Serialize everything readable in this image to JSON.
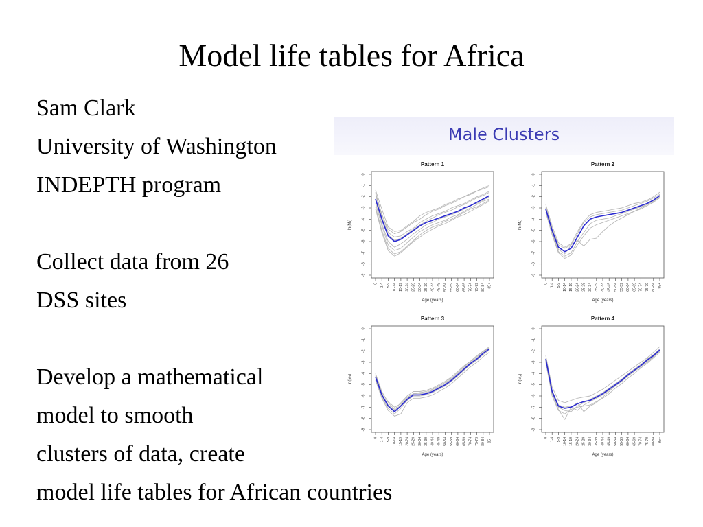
{
  "slide": {
    "title": "Model life tables for Africa",
    "lines": [
      "Sam Clark",
      "University of Washington",
      "INDEPTH program",
      "",
      "Collect data from 26",
      "DSS sites",
      "",
      "Develop a mathematical",
      "model to smooth",
      "clusters of data, create",
      "model life tables for African countries"
    ]
  },
  "figure": {
    "heading": "Male Clusters",
    "colors": {
      "fitted": "#2a2ad0",
      "observed": "#b8b8b8",
      "heading": "#3b3bb3"
    }
  },
  "chart_data": [
    {
      "type": "line",
      "title": "Pattern 1",
      "xlabel": "Age (years)",
      "ylabel": "ln(Mₓ)",
      "ylim": [
        -9,
        0
      ],
      "yticks": [
        0,
        -1,
        -2,
        -3,
        -4,
        -5,
        -6,
        -7,
        -8,
        -9
      ],
      "categories": [
        "0",
        "1-4",
        "5-9",
        "10-14",
        "15-19",
        "20-24",
        "25-29",
        "30-34",
        "35-39",
        "40-44",
        "45-49",
        "50-54",
        "55-59",
        "60-64",
        "65-69",
        "70-74",
        "75-79",
        "80-84",
        "85+"
      ],
      "series": [
        {
          "role": "fitted",
          "values": [
            -2.2,
            -4.0,
            -5.5,
            -6.0,
            -5.8,
            -5.4,
            -5.0,
            -4.6,
            -4.3,
            -4.1,
            -3.9,
            -3.7,
            -3.5,
            -3.3,
            -3.0,
            -2.8,
            -2.5,
            -2.2,
            -1.9
          ]
        },
        {
          "role": "observed",
          "values": [
            -1.6,
            -3.6,
            -4.9,
            -5.3,
            -5.1,
            -4.7,
            -4.3,
            -4.0,
            -3.6,
            -3.3,
            -3.1,
            -2.8,
            -2.6,
            -2.3,
            -2.0,
            -1.8,
            -1.5,
            -1.2,
            -1.0
          ]
        },
        {
          "role": "observed",
          "values": [
            -2.6,
            -4.6,
            -6.3,
            -6.8,
            -6.6,
            -6.1,
            -5.6,
            -5.1,
            -4.8,
            -4.5,
            -4.3,
            -4.1,
            -3.8,
            -3.6,
            -3.3,
            -3.0,
            -2.7,
            -2.4,
            -2.2
          ]
        },
        {
          "role": "observed",
          "values": [
            -1.9,
            -3.5,
            -5.2,
            -5.6,
            -5.5,
            -5.1,
            -4.8,
            -4.3,
            -4.0,
            -3.7,
            -3.5,
            -3.3,
            -3.0,
            -2.8,
            -2.6,
            -2.3,
            -2.0,
            -1.8,
            -1.5
          ]
        },
        {
          "role": "observed",
          "values": [
            -2.9,
            -5.0,
            -6.6,
            -7.1,
            -6.9,
            -6.4,
            -5.9,
            -5.4,
            -5.0,
            -4.7,
            -4.5,
            -4.2,
            -4.0,
            -3.7,
            -3.4,
            -3.1,
            -2.9,
            -2.6,
            -2.3
          ]
        },
        {
          "role": "observed",
          "values": [
            -1.4,
            -3.1,
            -4.7,
            -5.1,
            -5.0,
            -4.6,
            -4.2,
            -3.7,
            -3.4,
            -3.2,
            -3.0,
            -2.7,
            -2.5,
            -2.2,
            -2.0,
            -1.7,
            -1.5,
            -1.3,
            -1.1
          ]
        },
        {
          "role": "observed",
          "values": [
            -2.3,
            -4.4,
            -6.0,
            -6.5,
            -6.2,
            -5.8,
            -5.3,
            -4.9,
            -4.5,
            -4.3,
            -4.0,
            -3.8,
            -3.6,
            -3.4,
            -3.1,
            -2.8,
            -2.6,
            -2.3,
            -2.0
          ]
        },
        {
          "role": "observed",
          "values": [
            -3.1,
            -5.2,
            -6.8,
            -7.3,
            -7.0,
            -6.5,
            -6.0,
            -5.6,
            -5.2,
            -4.9,
            -4.6,
            -4.4,
            -4.1,
            -3.8,
            -3.6,
            -3.3,
            -3.0,
            -2.7,
            -2.4
          ]
        },
        {
          "role": "observed",
          "values": [
            -1.7,
            -3.8,
            -5.4,
            -5.9,
            -5.7,
            -5.3,
            -4.9,
            -4.5,
            -4.2,
            -3.9,
            -3.6,
            -3.4,
            -3.2,
            -2.9,
            -2.7,
            -2.4,
            -2.1,
            -1.9,
            -1.6
          ]
        }
      ]
    },
    {
      "type": "line",
      "title": "Pattern 2",
      "xlabel": "Age (years)",
      "ylabel": "ln(Mₓ)",
      "ylim": [
        -9,
        0
      ],
      "yticks": [
        0,
        -1,
        -2,
        -3,
        -4,
        -5,
        -6,
        -7,
        -8,
        -9
      ],
      "categories": [
        "0",
        "1-4",
        "5-9",
        "10-14",
        "15-19",
        "20-24",
        "25-29",
        "30-34",
        "35-39",
        "40-44",
        "45-49",
        "50-54",
        "55-59",
        "60-64",
        "65-69",
        "70-74",
        "75-79",
        "80-84",
        "85+"
      ],
      "series": [
        {
          "role": "fitted",
          "values": [
            -3.1,
            -5.0,
            -6.5,
            -6.9,
            -6.6,
            -5.6,
            -4.6,
            -4.0,
            -3.8,
            -3.7,
            -3.6,
            -3.5,
            -3.4,
            -3.2,
            -3.0,
            -2.8,
            -2.6,
            -2.3,
            -1.9
          ]
        },
        {
          "role": "observed",
          "values": [
            -2.7,
            -4.6,
            -6.1,
            -6.5,
            -6.2,
            -5.1,
            -4.2,
            -3.6,
            -3.4,
            -3.3,
            -3.2,
            -3.1,
            -3.0,
            -2.8,
            -2.6,
            -2.5,
            -2.3,
            -2.0,
            -1.6
          ]
        },
        {
          "role": "observed",
          "values": [
            -3.4,
            -5.4,
            -7.0,
            -7.5,
            -7.2,
            -6.3,
            -5.5,
            -4.8,
            -4.5,
            -4.3,
            -4.1,
            -3.9,
            -3.7,
            -3.5,
            -3.3,
            -3.1,
            -2.8,
            -2.5,
            -2.1
          ]
        },
        {
          "role": "observed",
          "values": [
            -3.0,
            -5.1,
            -6.7,
            -7.1,
            -6.3,
            -5.9,
            -6.4,
            -5.8,
            -5.7,
            -5.1,
            -4.6,
            -4.2,
            -3.9,
            -3.6,
            -3.3,
            -3.0,
            -2.7,
            -2.4,
            -2.0
          ]
        },
        {
          "role": "observed",
          "values": [
            -3.2,
            -5.2,
            -6.9,
            -7.3,
            -7.0,
            -6.0,
            -5.2,
            -4.4,
            -4.1,
            -4.0,
            -3.9,
            -3.7,
            -3.5,
            -3.3,
            -3.1,
            -2.9,
            -2.7,
            -2.4,
            -2.0
          ]
        },
        {
          "role": "observed",
          "values": [
            -2.9,
            -4.8,
            -6.3,
            -6.6,
            -6.3,
            -5.3,
            -4.3,
            -3.8,
            -3.6,
            -3.5,
            -3.4,
            -3.3,
            -3.2,
            -3.0,
            -2.8,
            -2.6,
            -2.4,
            -2.1,
            -1.8
          ]
        }
      ]
    },
    {
      "type": "line",
      "title": "Pattern 3",
      "xlabel": "Age (years)",
      "ylabel": "ln(Mₓ)",
      "ylim": [
        -9,
        0
      ],
      "yticks": [
        0,
        -1,
        -2,
        -3,
        -4,
        -5,
        -6,
        -7,
        -8,
        -9
      ],
      "categories": [
        "0",
        "1-4",
        "5-9",
        "10-14",
        "15-19",
        "20-24",
        "25-29",
        "30-34",
        "35-39",
        "40-44",
        "45-49",
        "50-54",
        "55-59",
        "60-64",
        "65-69",
        "70-74",
        "75-79",
        "80-84",
        "85+"
      ],
      "series": [
        {
          "role": "fitted",
          "values": [
            -4.3,
            -5.9,
            -6.9,
            -7.4,
            -6.9,
            -6.3,
            -5.9,
            -5.9,
            -5.8,
            -5.6,
            -5.3,
            -5.0,
            -4.6,
            -4.1,
            -3.6,
            -3.1,
            -2.7,
            -2.2,
            -1.8
          ]
        },
        {
          "role": "observed",
          "values": [
            -4.0,
            -5.6,
            -6.6,
            -7.2,
            -6.6,
            -6.0,
            -5.6,
            -5.6,
            -5.5,
            -5.3,
            -5.0,
            -4.7,
            -4.3,
            -3.8,
            -3.3,
            -2.9,
            -2.4,
            -2.0,
            -1.6
          ]
        },
        {
          "role": "observed",
          "values": [
            -4.6,
            -6.2,
            -7.3,
            -7.8,
            -7.6,
            -6.6,
            -6.2,
            -6.2,
            -6.1,
            -5.9,
            -5.6,
            -5.3,
            -4.9,
            -4.4,
            -3.9,
            -3.4,
            -3.0,
            -2.5,
            -2.1
          ]
        },
        {
          "role": "observed",
          "values": [
            -4.2,
            -5.8,
            -6.8,
            -7.3,
            -6.8,
            -6.2,
            -5.8,
            -5.8,
            -5.7,
            -5.5,
            -5.2,
            -4.9,
            -4.5,
            -4.0,
            -3.5,
            -3.0,
            -2.6,
            -2.1,
            -1.7
          ]
        },
        {
          "role": "observed",
          "values": [
            -4.5,
            -6.1,
            -7.1,
            -7.6,
            -7.1,
            -6.4,
            -6.0,
            -6.0,
            -5.9,
            -5.7,
            -5.4,
            -5.1,
            -4.7,
            -4.2,
            -3.7,
            -3.2,
            -2.8,
            -2.3,
            -1.9
          ]
        },
        {
          "role": "observed",
          "values": [
            -4.1,
            -5.7,
            -6.5,
            -7.0,
            -6.7,
            -6.1,
            -5.8,
            -5.7,
            -5.6,
            -5.4,
            -5.1,
            -4.8,
            -4.4,
            -3.9,
            -3.4,
            -2.9,
            -2.5,
            -2.0,
            -1.7
          ]
        }
      ]
    },
    {
      "type": "line",
      "title": "Pattern 4",
      "xlabel": "Age (years)",
      "ylabel": "ln(Mₓ)",
      "ylim": [
        -9,
        0
      ],
      "yticks": [
        0,
        -1,
        -2,
        -3,
        -4,
        -5,
        -6,
        -7,
        -8,
        -9
      ],
      "categories": [
        "0",
        "1-4",
        "5-9",
        "10-14",
        "15-19",
        "20-24",
        "25-29",
        "30-34",
        "35-39",
        "40-44",
        "45-49",
        "50-54",
        "55-59",
        "60-64",
        "65-69",
        "70-74",
        "75-79",
        "80-84",
        "85+"
      ],
      "series": [
        {
          "role": "fitted",
          "values": [
            -2.7,
            -5.6,
            -6.9,
            -7.1,
            -7.0,
            -6.7,
            -6.5,
            -6.4,
            -6.1,
            -5.8,
            -5.4,
            -5.0,
            -4.6,
            -4.1,
            -3.7,
            -3.3,
            -2.8,
            -2.4,
            -1.9
          ]
        },
        {
          "role": "observed",
          "values": [
            -2.4,
            -5.2,
            -6.4,
            -6.6,
            -6.4,
            -6.2,
            -6.1,
            -6.0,
            -5.7,
            -5.4,
            -5.0,
            -4.6,
            -4.2,
            -3.8,
            -3.4,
            -3.0,
            -2.6,
            -2.1,
            -1.6
          ]
        },
        {
          "role": "observed",
          "values": [
            -3.0,
            -6.0,
            -7.3,
            -7.6,
            -7.2,
            -7.0,
            -6.9,
            -6.8,
            -6.5,
            -6.2,
            -5.8,
            -5.3,
            -4.9,
            -4.4,
            -4.0,
            -3.5,
            -3.1,
            -2.6,
            -2.1
          ]
        },
        {
          "role": "observed",
          "values": [
            -2.8,
            -5.8,
            -7.2,
            -8.1,
            -7.0,
            -6.6,
            -7.4,
            -6.9,
            -6.6,
            -6.1,
            -5.6,
            -5.1,
            -4.7,
            -4.2,
            -3.8,
            -3.3,
            -2.9,
            -2.5,
            -2.0
          ]
        },
        {
          "role": "observed",
          "values": [
            -2.6,
            -5.5,
            -6.8,
            -7.0,
            -6.9,
            -7.3,
            -6.8,
            -6.5,
            -6.2,
            -5.9,
            -5.5,
            -5.1,
            -4.7,
            -4.2,
            -3.8,
            -3.4,
            -3.0,
            -2.5,
            -2.0
          ]
        },
        {
          "role": "observed",
          "values": [
            -2.9,
            -5.7,
            -7.0,
            -7.3,
            -7.4,
            -6.9,
            -6.6,
            -6.3,
            -6.0,
            -5.7,
            -5.3,
            -4.9,
            -4.5,
            -4.0,
            -3.6,
            -3.2,
            -2.7,
            -2.3,
            -1.8
          ]
        }
      ]
    }
  ]
}
